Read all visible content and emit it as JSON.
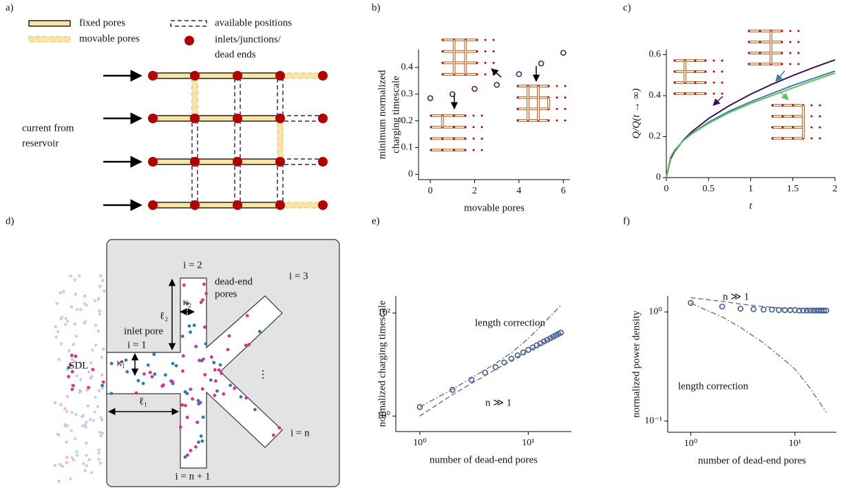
{
  "panel_a": {
    "label": "a)",
    "legend": {
      "fixed": "fixed pores",
      "movable": "movable pores",
      "available": "available positions",
      "nodes": [
        "inlets/junctions/",
        "dead ends"
      ]
    },
    "inlet_text": [
      "current from",
      "reservoir"
    ]
  },
  "panel_d": {
    "label": "d)",
    "labels": {
      "i_2": "i = 2",
      "dead_end": [
        "dead-end",
        "pores"
      ],
      "i_3": "i = 3",
      "l2": "ℓ₂",
      "k2": "κ₂",
      "inlet": [
        "inlet pore",
        "i = 1"
      ],
      "sdl": "SDL",
      "k1": "κ₁",
      "l1": "ℓ₁",
      "dots": "⋮",
      "i_n": "i = n",
      "i_n1": "i = n + 1"
    }
  },
  "chart_data": [
    {
      "label": "b)",
      "type": "scatter",
      "x": [
        0,
        1,
        2,
        3,
        4,
        5,
        6
      ],
      "values": [
        0.285,
        0.3,
        0.32,
        0.335,
        0.375,
        0.415,
        0.455
      ],
      "color": "#5b1a72",
      "xlim": [
        -0.53,
        6.3
      ],
      "ylim": [
        -0.02,
        0.467
      ],
      "xticks": [
        0,
        2,
        4,
        6
      ],
      "yticks": [
        0,
        0.1,
        0.2,
        0.3,
        0.4
      ],
      "xlabel": "movable pores",
      "ylabel": [
        "minimum normalized",
        "charging timescale"
      ]
    },
    {
      "label": "c)",
      "type": "line",
      "x": [
        0,
        0.05,
        0.1,
        0.2,
        0.3,
        0.5,
        0.75,
        1,
        1.25,
        1.5,
        1.75,
        2
      ],
      "series": [
        {
          "color": "#3b0f5c",
          "values": [
            0,
            0.091,
            0.129,
            0.182,
            0.223,
            0.288,
            0.352,
            0.407,
            0.455,
            0.498,
            0.538,
            0.575
          ]
        },
        {
          "color": "#3f7fa6",
          "values": [
            0,
            0.1,
            0.135,
            0.18,
            0.215,
            0.27,
            0.325,
            0.37,
            0.41,
            0.45,
            0.485,
            0.52
          ]
        },
        {
          "color": "#5cc45c",
          "values": [
            0,
            0.1,
            0.135,
            0.18,
            0.213,
            0.265,
            0.318,
            0.362,
            0.4,
            0.438,
            0.475,
            0.51
          ]
        }
      ],
      "xlim": [
        0,
        2
      ],
      "ylim": [
        0,
        0.625
      ],
      "xticks": [
        0,
        0.5,
        1,
        1.5,
        2
      ],
      "yticks": [
        0,
        0.2,
        0.4,
        0.6
      ],
      "xlabel": "t",
      "ylabel": "Q/Q(t → ∞)"
    },
    {
      "label": "e)",
      "type": "scatter",
      "log_x": true,
      "log_y": true,
      "series": [
        {
          "style": "markers",
          "color": "#3b5a9a",
          "x": [
            1,
            2,
            3,
            4,
            5,
            6,
            7,
            8,
            9,
            10,
            11,
            12,
            13,
            14,
            15,
            16,
            17,
            18,
            19,
            20
          ],
          "values": [
            1.5,
            3.24,
            5.08,
            6.98,
            8.95,
            10.96,
            13.0,
            15.1,
            17.2,
            19.3,
            21.5,
            23.7,
            25.9,
            28.1,
            30.3,
            32.5,
            34.8,
            37.1,
            39.4,
            41.7
          ]
        },
        {
          "style": "dashdot",
          "color": "#777777",
          "x": [
            1,
            2,
            3,
            5,
            7,
            10,
            14,
            20
          ],
          "values": [
            1.5,
            3.3,
            5.5,
            10.5,
            17,
            32,
            65,
            140
          ]
        },
        {
          "style": "dashed",
          "color": "#777777",
          "x": [
            1,
            2,
            3,
            5,
            7,
            10,
            14,
            20
          ],
          "values": [
            1.0,
            2.6,
            4.3,
            8,
            12,
            18.5,
            27,
            40
          ]
        }
      ],
      "xlim": [
        0.6,
        25
      ],
      "ylim": [
        0.5,
        215
      ],
      "xticks": [
        {
          "value": 1,
          "label": "10⁰"
        },
        {
          "value": 10,
          "label": "10¹"
        }
      ],
      "yticks": [
        {
          "value": 1,
          "label": "10⁰"
        },
        {
          "value": 100,
          "label": "10²"
        }
      ],
      "annotations": [
        "length correction",
        "n ≫ 1"
      ],
      "xlabel": "number of dead-end pores",
      "ylabel": "normalized charging timescale"
    },
    {
      "label": "f)",
      "type": "scatter",
      "log_x": true,
      "log_y": true,
      "series": [
        {
          "style": "markers",
          "color": "#3b5a9a",
          "x": [
            1,
            2,
            3,
            4,
            5,
            6,
            7,
            8,
            9,
            10,
            11,
            12,
            13,
            14,
            15,
            16,
            17,
            18,
            19,
            20
          ],
          "values": [
            1.21,
            1.12,
            1.07,
            1.06,
            1.05,
            1.05,
            1.04,
            1.04,
            1.04,
            1.04,
            1.03,
            1.03,
            1.03,
            1.03,
            1.03,
            1.03,
            1.03,
            1.03,
            1.03,
            1.03
          ]
        },
        {
          "style": "dashed",
          "color": "#777777",
          "x": [
            1,
            2,
            3,
            5,
            7,
            10,
            14,
            20
          ],
          "values": [
            1.35,
            1.25,
            1.18,
            1.12,
            1.09,
            1.07,
            1.05,
            1.04
          ]
        },
        {
          "style": "dashdot",
          "color": "#777777",
          "x": [
            1,
            2,
            3,
            5,
            7,
            10,
            14,
            20
          ],
          "values": [
            1.2,
            0.9,
            0.72,
            0.52,
            0.4,
            0.3,
            0.2,
            0.12
          ]
        }
      ],
      "xlim": [
        0.6,
        25
      ],
      "ylim": [
        0.079,
        1.4
      ],
      "xticks": [
        {
          "value": 1,
          "label": "10⁰"
        },
        {
          "value": 10,
          "label": "10¹"
        }
      ],
      "yticks": [
        {
          "value": 0.1,
          "label": "10⁻¹"
        },
        {
          "value": 1,
          "label": "10⁰"
        }
      ],
      "annotations": [
        "n ≫ 1",
        "length correction"
      ],
      "xlabel": "number of dead-end pores",
      "ylabel": "normalized power density"
    }
  ]
}
